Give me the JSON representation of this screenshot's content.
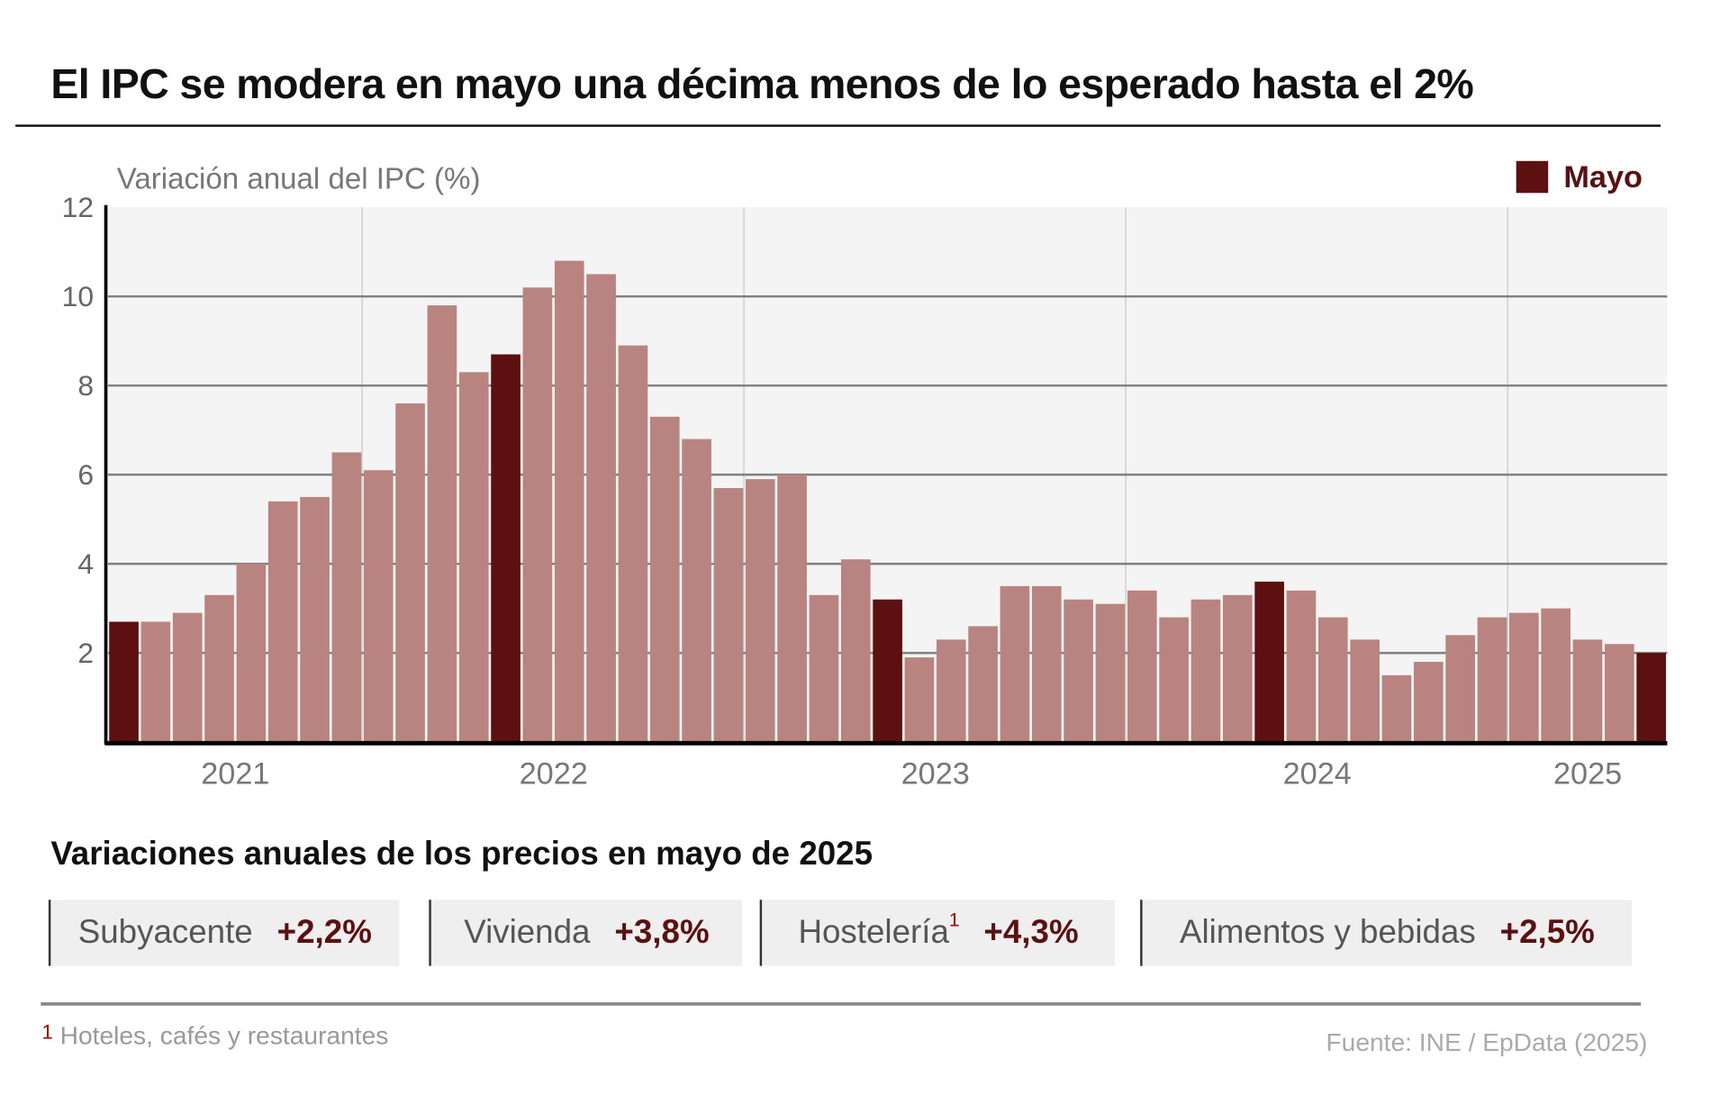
{
  "title": "El IPC se modera en mayo una décima menos de lo esperado hasta el 2%",
  "colors": {
    "highlight": "#5c1010",
    "regular": "#b98380",
    "plot_bg": "#f4f4f4",
    "grid": "#808080"
  },
  "chart_data": {
    "type": "bar",
    "title": "El IPC se modera en mayo una décima menos de lo esperado hasta el 2%",
    "ylabel": "Variación anual del IPC (%)",
    "xlabel": "",
    "ylim": [
      0,
      12
    ],
    "yticks": [
      "2",
      "4",
      "6",
      "8",
      "10",
      "12"
    ],
    "xtick_labels": [
      "2021",
      "2022",
      "2023",
      "2024",
      "2025"
    ],
    "grid": true,
    "legend": {
      "label": "Mayo",
      "placement": "top-right"
    },
    "categories": [
      "2021-05",
      "2021-06",
      "2021-07",
      "2021-08",
      "2021-09",
      "2021-10",
      "2021-11",
      "2021-12",
      "2022-01",
      "2022-02",
      "2022-03",
      "2022-04",
      "2022-05",
      "2022-06",
      "2022-07",
      "2022-08",
      "2022-09",
      "2022-10",
      "2022-11",
      "2022-12",
      "2023-01",
      "2023-02",
      "2023-03",
      "2023-04",
      "2023-05",
      "2023-06",
      "2023-07",
      "2023-08",
      "2023-09",
      "2023-10",
      "2023-11",
      "2023-12",
      "2024-01",
      "2024-02",
      "2024-03",
      "2024-04",
      "2024-05",
      "2024-06",
      "2024-07",
      "2024-08",
      "2024-09",
      "2024-10",
      "2024-11",
      "2024-12",
      "2025-01",
      "2025-02",
      "2025-03",
      "2025-04",
      "2025-05"
    ],
    "values": [
      2.7,
      2.7,
      2.9,
      3.3,
      4.0,
      5.4,
      5.5,
      6.5,
      6.1,
      7.6,
      9.8,
      8.3,
      8.7,
      10.2,
      10.8,
      10.5,
      8.9,
      7.3,
      6.8,
      5.7,
      5.9,
      6.0,
      3.3,
      4.1,
      3.2,
      1.9,
      2.3,
      2.6,
      3.5,
      3.5,
      3.2,
      3.1,
      3.4,
      2.8,
      3.2,
      3.3,
      3.6,
      3.4,
      2.8,
      2.3,
      1.5,
      1.8,
      2.4,
      2.8,
      2.9,
      3.0,
      2.3,
      2.2,
      2.0
    ],
    "highlighted": "Mayo"
  },
  "section_title": "Variaciones anuales de los precios en mayo de 2025",
  "boxes": [
    {
      "label": "Subyacente",
      "value": "+2,2%",
      "mark": ""
    },
    {
      "label": "Vivienda",
      "value": "+3,8%",
      "mark": ""
    },
    {
      "label": "Hostelería",
      "value": "+4,3%",
      "mark": "1"
    },
    {
      "label": "Alimentos y bebidas",
      "value": "+2,5%",
      "mark": ""
    }
  ],
  "footnote": {
    "mark": "1",
    "text": "Hoteles, cafés y restaurantes"
  },
  "source": "Fuente: INE / EpData (2025)"
}
